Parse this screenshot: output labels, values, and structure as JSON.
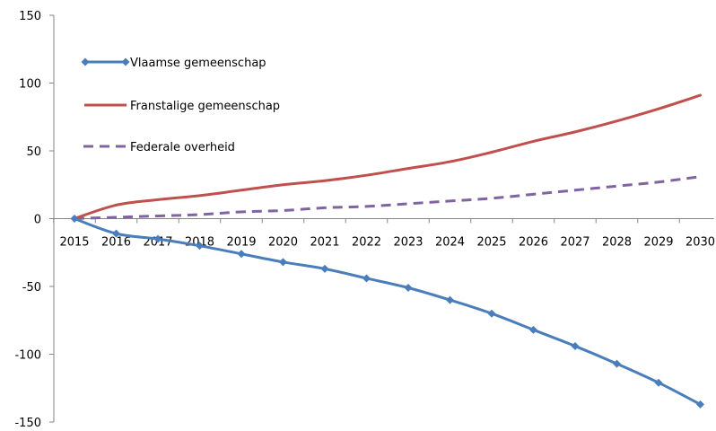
{
  "chart_data": {
    "type": "line",
    "x": [
      2015,
      2016,
      2017,
      2018,
      2019,
      2020,
      2021,
      2022,
      2023,
      2024,
      2025,
      2026,
      2027,
      2028,
      2029,
      2030
    ],
    "x_tick_labels": [
      "2015",
      "2016",
      "2017",
      "2018",
      "2019",
      "2020",
      "2021",
      "2022",
      "2023",
      "2024",
      "2025",
      "2026",
      "2027",
      "2028",
      "2029",
      "2030"
    ],
    "y_tick_labels": [
      "150",
      "100",
      "50",
      "0",
      "-50",
      "-100",
      "-150"
    ],
    "ylim": [
      -150,
      150
    ],
    "y_ticks": [
      150,
      100,
      50,
      0,
      -50,
      -100,
      -150
    ],
    "grid": false,
    "legend_placement": "top-left",
    "series": [
      {
        "name": "Vlaamse gemeenschap",
        "color": "#4a7ebb",
        "style": "solid-diamond-markers",
        "values": [
          0,
          -11,
          -15,
          -20,
          -26,
          -32,
          -37,
          -44,
          -51,
          -60,
          -70,
          -82,
          -94,
          -107,
          -121,
          -137
        ]
      },
      {
        "name": "Franstalige gemeenschap",
        "color": "#c0504d",
        "style": "solid",
        "values": [
          0,
          10,
          14,
          17,
          21,
          25,
          28,
          32,
          37,
          42,
          49,
          57,
          64,
          72,
          81,
          91
        ]
      },
      {
        "name": "Federale overheid",
        "color": "#8064a2",
        "style": "dashed",
        "values": [
          0,
          1,
          2,
          3,
          5,
          6,
          8,
          9,
          11,
          13,
          15,
          18,
          21,
          24,
          27,
          31
        ]
      }
    ]
  }
}
